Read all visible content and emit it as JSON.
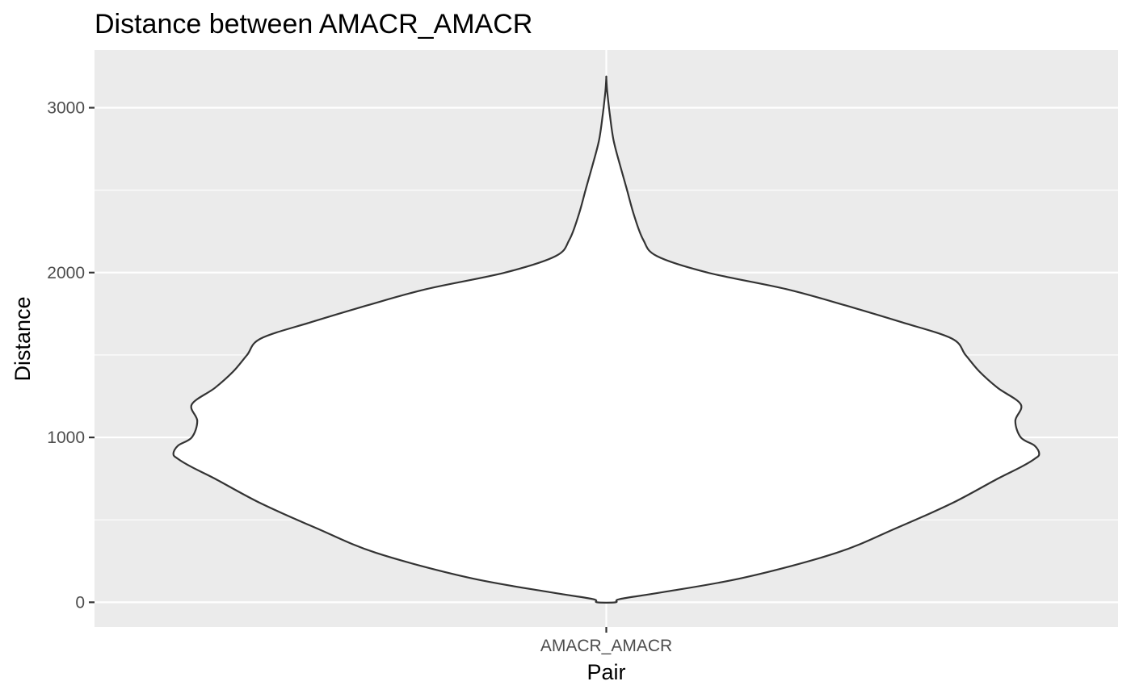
{
  "chart_data": {
    "type": "violin",
    "title": "Distance between AMACR_AMACR",
    "xlabel": "Pair",
    "ylabel": "Distance",
    "categories": [
      "AMACR_AMACR"
    ],
    "ylim": [
      -150,
      3350
    ],
    "y_ticks": [
      0,
      1000,
      2000,
      3000
    ],
    "y_minor_ticks": [
      500,
      1500,
      2500
    ],
    "grid": true,
    "colors": {
      "panel_background": "#ebebeb",
      "grid": "#ffffff",
      "violin_fill": "#ffffff",
      "violin_outline": "#333333",
      "tick_label": "#4d4d4d"
    },
    "series": [
      {
        "category": "AMACR_AMACR",
        "y_range": [
          0,
          3180
        ],
        "density_profile": [
          [
            0,
            0.02
          ],
          [
            20,
            0.03
          ],
          [
            60,
            0.12
          ],
          [
            150,
            0.3
          ],
          [
            300,
            0.5
          ],
          [
            450,
            0.63
          ],
          [
            600,
            0.75
          ],
          [
            750,
            0.85
          ],
          [
            820,
            0.9
          ],
          [
            870,
            0.93
          ],
          [
            900,
            0.94
          ],
          [
            950,
            0.93
          ],
          [
            1000,
            0.9
          ],
          [
            1100,
            0.888
          ],
          [
            1200,
            0.9
          ],
          [
            1300,
            0.85
          ],
          [
            1400,
            0.81
          ],
          [
            1500,
            0.78
          ],
          [
            1600,
            0.75
          ],
          [
            1700,
            0.64
          ],
          [
            1800,
            0.52
          ],
          [
            1900,
            0.39
          ],
          [
            2000,
            0.22
          ],
          [
            2100,
            0.11
          ],
          [
            2200,
            0.08
          ],
          [
            2350,
            0.06
          ],
          [
            2500,
            0.045
          ],
          [
            2650,
            0.03
          ],
          [
            2800,
            0.016
          ],
          [
            2950,
            0.008
          ],
          [
            3100,
            0.002
          ],
          [
            3180,
            0.0
          ]
        ]
      }
    ]
  }
}
